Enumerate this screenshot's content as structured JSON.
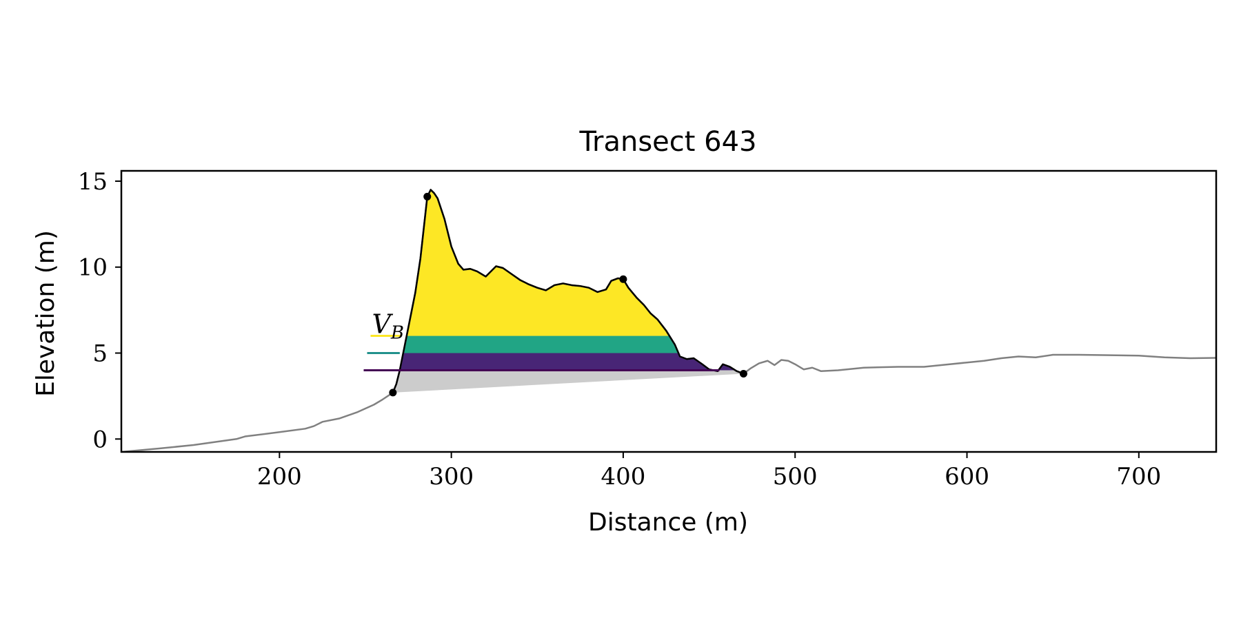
{
  "chart_data": {
    "type": "area",
    "title": "Transect 643",
    "xlabel": "Distance (m)",
    "ylabel": "Elevation (m)",
    "xlim": [
      108,
      745
    ],
    "ylim": [
      -0.75,
      15.6
    ],
    "x_ticks": [
      200,
      300,
      400,
      500,
      600,
      700
    ],
    "y_ticks": [
      0,
      5,
      10,
      15
    ],
    "grid": false,
    "colors": {
      "profile_full": "#808080",
      "profile_dune": "#000000",
      "base_fill": "#cccccc",
      "level_yellow": "#fde725",
      "level_teal": "#21a585",
      "level_purple": "#482576",
      "line_yellow": "#fde725",
      "line_teal": "#21918c",
      "line_purple": "#440154"
    },
    "annotation": {
      "label": "V",
      "subscript": "B",
      "x": 253,
      "y": 6.0
    },
    "level_lines": [
      {
        "name": "yellow",
        "y": 6.0,
        "x_start": 253,
        "x_end": 271
      },
      {
        "name": "teal",
        "y": 5.0,
        "x_start": 251,
        "x_end": 270
      },
      {
        "name": "purple",
        "y": 4.0,
        "x_start": 249,
        "x_end": 456
      }
    ],
    "fill_bands": [
      {
        "name": "purple",
        "from": 4.0,
        "to": 5.0
      },
      {
        "name": "teal",
        "from": 5.0,
        "to": 6.0
      },
      {
        "name": "yellow",
        "from": 6.0,
        "to": 20
      }
    ],
    "key_points": [
      {
        "x": 266,
        "y": 2.7
      },
      {
        "x": 286,
        "y": 14.1
      },
      {
        "x": 400,
        "y": 9.3
      },
      {
        "x": 470,
        "y": 3.8
      }
    ],
    "profile": [
      [
        108,
        -0.75
      ],
      [
        130,
        -0.55
      ],
      [
        150,
        -0.35
      ],
      [
        175,
        0.0
      ],
      [
        180,
        0.15
      ],
      [
        200,
        0.4
      ],
      [
        215,
        0.6
      ],
      [
        220,
        0.75
      ],
      [
        225,
        1.0
      ],
      [
        235,
        1.2
      ],
      [
        245,
        1.55
      ],
      [
        255,
        2.0
      ],
      [
        260,
        2.3
      ],
      [
        266,
        2.7
      ],
      [
        268,
        3.2
      ],
      [
        270,
        4.0
      ],
      [
        272,
        5.0
      ],
      [
        275,
        6.5
      ],
      [
        279,
        8.5
      ],
      [
        282,
        10.5
      ],
      [
        284,
        12.3
      ],
      [
        286,
        14.1
      ],
      [
        288,
        14.5
      ],
      [
        290,
        14.3
      ],
      [
        292,
        14.0
      ],
      [
        296,
        12.8
      ],
      [
        300,
        11.2
      ],
      [
        304,
        10.2
      ],
      [
        307,
        9.85
      ],
      [
        311,
        9.9
      ],
      [
        315,
        9.75
      ],
      [
        320,
        9.45
      ],
      [
        323,
        9.75
      ],
      [
        326,
        10.05
      ],
      [
        330,
        9.95
      ],
      [
        335,
        9.6
      ],
      [
        340,
        9.25
      ],
      [
        345,
        9.0
      ],
      [
        350,
        8.8
      ],
      [
        355,
        8.65
      ],
      [
        360,
        8.95
      ],
      [
        365,
        9.05
      ],
      [
        370,
        8.95
      ],
      [
        375,
        8.9
      ],
      [
        380,
        8.8
      ],
      [
        385,
        8.55
      ],
      [
        390,
        8.7
      ],
      [
        393,
        9.2
      ],
      [
        397,
        9.35
      ],
      [
        400,
        9.3
      ],
      [
        403,
        8.8
      ],
      [
        408,
        8.2
      ],
      [
        412,
        7.8
      ],
      [
        416,
        7.3
      ],
      [
        420,
        6.95
      ],
      [
        425,
        6.3
      ],
      [
        430,
        5.5
      ],
      [
        433,
        4.8
      ],
      [
        437,
        4.65
      ],
      [
        441,
        4.7
      ],
      [
        446,
        4.35
      ],
      [
        450,
        4.05
      ],
      [
        455,
        3.95
      ],
      [
        458,
        4.35
      ],
      [
        462,
        4.2
      ],
      [
        466,
        3.95
      ],
      [
        470,
        3.8
      ],
      [
        474,
        4.1
      ],
      [
        479,
        4.4
      ],
      [
        484,
        4.55
      ],
      [
        488,
        4.3
      ],
      [
        492,
        4.6
      ],
      [
        496,
        4.55
      ],
      [
        500,
        4.35
      ],
      [
        505,
        4.05
      ],
      [
        510,
        4.15
      ],
      [
        515,
        3.95
      ],
      [
        525,
        4.0
      ],
      [
        540,
        4.15
      ],
      [
        560,
        4.2
      ],
      [
        575,
        4.2
      ],
      [
        585,
        4.3
      ],
      [
        600,
        4.45
      ],
      [
        610,
        4.55
      ],
      [
        620,
        4.7
      ],
      [
        630,
        4.8
      ],
      [
        640,
        4.75
      ],
      [
        650,
        4.9
      ],
      [
        665,
        4.9
      ],
      [
        680,
        4.88
      ],
      [
        700,
        4.85
      ],
      [
        715,
        4.75
      ],
      [
        730,
        4.7
      ],
      [
        745,
        4.72
      ]
    ]
  }
}
